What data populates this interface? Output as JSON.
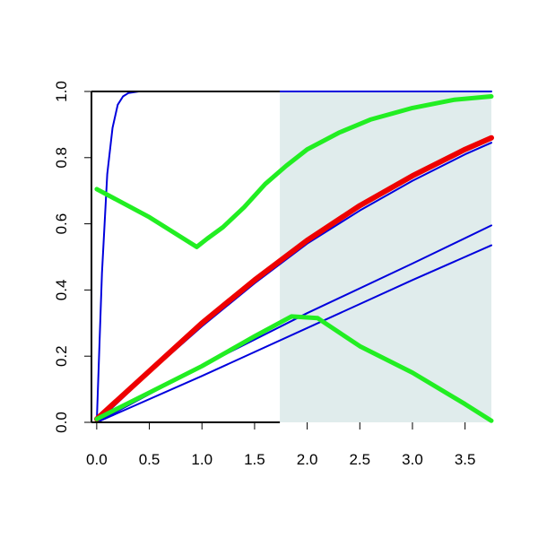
{
  "chart_data": {
    "type": "line",
    "title": "",
    "xlabel": "",
    "ylabel": "",
    "xlim": [
      -0.05,
      3.75
    ],
    "ylim": [
      0,
      1
    ],
    "grid": false,
    "x_ticks": [
      "0.0",
      "0.5",
      "1.0",
      "1.5",
      "2.0",
      "2.5",
      "3.0",
      "3.5"
    ],
    "y_ticks": [
      "0.0",
      "0.2",
      "0.4",
      "0.6",
      "0.8",
      "1.0"
    ],
    "shaded_region": {
      "x_start": 1.74,
      "x_end": 3.75,
      "color": "#e0ecec"
    },
    "series": [
      {
        "color": "#0000dd",
        "width": 2,
        "x": [
          0,
          0.05,
          0.1,
          0.15,
          0.2,
          0.25,
          0.3,
          0.4,
          0.5,
          1.0,
          2.0,
          3.75
        ],
        "y": [
          0.0,
          0.45,
          0.75,
          0.89,
          0.96,
          0.985,
          0.995,
          1.0,
          1.0,
          1.0,
          1.0,
          1.0
        ]
      },
      {
        "color": "#0000dd",
        "width": 2,
        "x": [
          0,
          0.5,
          1.0,
          1.5,
          2.0,
          2.5,
          3.0,
          3.5,
          3.75
        ],
        "y": [
          0.0,
          0.15,
          0.29,
          0.42,
          0.54,
          0.64,
          0.73,
          0.81,
          0.845
        ]
      },
      {
        "color": "#0000dd",
        "width": 2,
        "x": [
          0,
          1.0,
          2.0,
          3.0,
          3.75
        ],
        "y": [
          0.0,
          0.17,
          0.33,
          0.48,
          0.595
        ]
      },
      {
        "color": "#0000dd",
        "width": 2,
        "x": [
          0,
          1.0,
          2.0,
          3.0,
          3.75
        ],
        "y": [
          0.0,
          0.14,
          0.285,
          0.43,
          0.535
        ]
      },
      {
        "color": "#ee0000",
        "width": 6,
        "x": [
          0,
          0.5,
          1.0,
          1.5,
          2.0,
          2.5,
          3.0,
          3.5,
          3.75
        ],
        "y": [
          0.01,
          0.155,
          0.3,
          0.43,
          0.55,
          0.655,
          0.745,
          0.825,
          0.86
        ]
      },
      {
        "color": "#22ee22",
        "width": 5,
        "x": [
          0,
          0.5,
          0.95,
          1.05,
          1.2,
          1.4,
          1.6,
          1.8,
          2.0,
          2.3,
          2.6,
          3.0,
          3.4,
          3.75
        ],
        "y": [
          0.705,
          0.62,
          0.53,
          0.555,
          0.59,
          0.65,
          0.72,
          0.775,
          0.825,
          0.875,
          0.915,
          0.95,
          0.975,
          0.985
        ]
      },
      {
        "color": "#22ee22",
        "width": 5,
        "x": [
          0,
          0.5,
          1.0,
          1.5,
          1.85,
          2.1,
          2.5,
          3.0,
          3.5,
          3.75
        ],
        "y": [
          0.01,
          0.09,
          0.17,
          0.26,
          0.32,
          0.315,
          0.23,
          0.15,
          0.055,
          0.005
        ]
      }
    ]
  }
}
